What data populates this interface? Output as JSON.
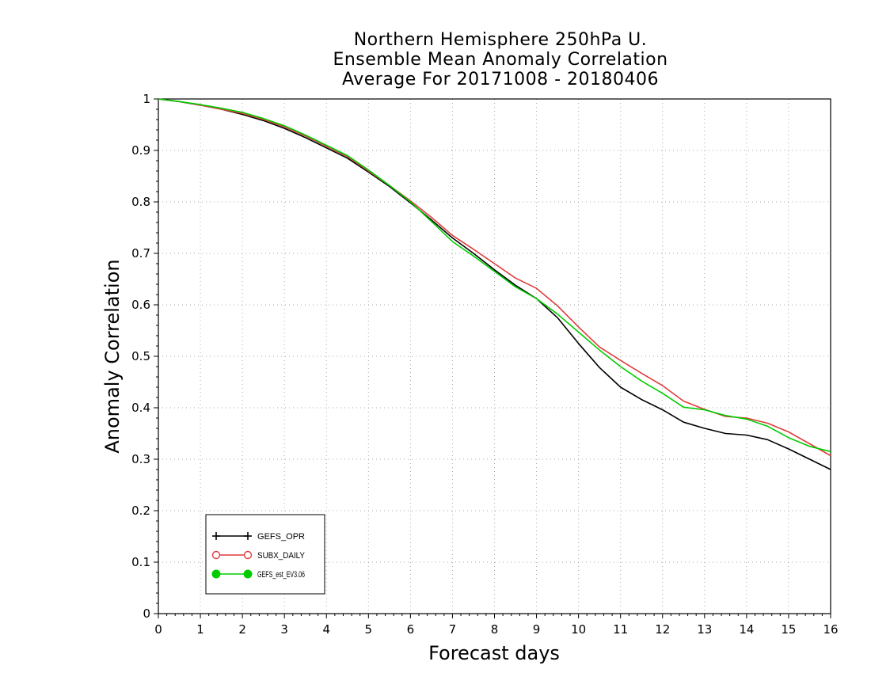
{
  "chart_data": {
    "type": "line",
    "title_lines": [
      "Northern Hemisphere 250hPa U.",
      "Ensemble Mean Anomaly Correlation",
      "Average For 20171008 - 20180406"
    ],
    "xlabel": "Forecast days",
    "ylabel": "Anomaly Correlation",
    "xlim": [
      0,
      16
    ],
    "ylim": [
      0,
      1
    ],
    "x_ticks": [
      0,
      1,
      2,
      3,
      4,
      5,
      6,
      7,
      8,
      9,
      10,
      11,
      12,
      13,
      14,
      15,
      16
    ],
    "y_ticks": [
      0,
      0.1,
      0.2,
      0.3,
      0.4,
      0.5,
      0.6,
      0.7,
      0.8,
      0.9,
      1
    ],
    "x_tick_labels": [
      "0",
      "1",
      "2",
      "3",
      "4",
      "5",
      "6",
      "7",
      "8",
      "9",
      "10",
      "11",
      "12",
      "13",
      "14",
      "15",
      "16"
    ],
    "y_tick_labels": [
      "0",
      "0.1",
      "0.2",
      "0.3",
      "0.4",
      "0.5",
      "0.6",
      "0.7",
      "0.8",
      "0.9",
      "1"
    ],
    "grid": true,
    "legend_position": "bottom-left",
    "x": [
      0,
      0.5,
      1,
      1.5,
      2,
      2.5,
      3,
      3.5,
      4,
      4.5,
      5,
      5.5,
      6,
      6.5,
      7,
      7.5,
      8,
      8.5,
      9,
      9.5,
      10,
      10.5,
      11,
      11.5,
      12,
      12.5,
      13,
      13.5,
      14,
      14.5,
      15,
      15.5,
      16
    ],
    "series": [
      {
        "name": "GEFS_OPR",
        "color": "#000000",
        "marker": "plus",
        "values": [
          1.0,
          0.995,
          0.988,
          0.98,
          0.97,
          0.958,
          0.943,
          0.925,
          0.905,
          0.885,
          0.858,
          0.83,
          0.798,
          0.765,
          0.73,
          0.7,
          0.668,
          0.638,
          0.612,
          0.575,
          0.525,
          0.478,
          0.44,
          0.416,
          0.396,
          0.372,
          0.36,
          0.35,
          0.347,
          0.338,
          0.32,
          0.3,
          0.28
        ]
      },
      {
        "name": "SUBX_DAILY",
        "color": "#e03c3c",
        "marker": "open-circle",
        "values": [
          1.0,
          0.995,
          0.988,
          0.98,
          0.972,
          0.96,
          0.946,
          0.928,
          0.908,
          0.888,
          0.86,
          0.832,
          0.802,
          0.77,
          0.735,
          0.708,
          0.68,
          0.652,
          0.632,
          0.598,
          0.557,
          0.518,
          0.492,
          0.467,
          0.443,
          0.413,
          0.397,
          0.383,
          0.38,
          0.37,
          0.353,
          0.33,
          0.307
        ]
      },
      {
        "name": "GEFS_est_EV3.06",
        "color": "#00cc00",
        "marker": "filled-circle",
        "values": [
          1.0,
          0.995,
          0.989,
          0.982,
          0.974,
          0.962,
          0.948,
          0.93,
          0.91,
          0.89,
          0.862,
          0.832,
          0.8,
          0.762,
          0.723,
          0.695,
          0.665,
          0.635,
          0.612,
          0.582,
          0.547,
          0.512,
          0.48,
          0.452,
          0.428,
          0.401,
          0.396,
          0.385,
          0.378,
          0.364,
          0.342,
          0.325,
          0.315
        ]
      }
    ]
  }
}
